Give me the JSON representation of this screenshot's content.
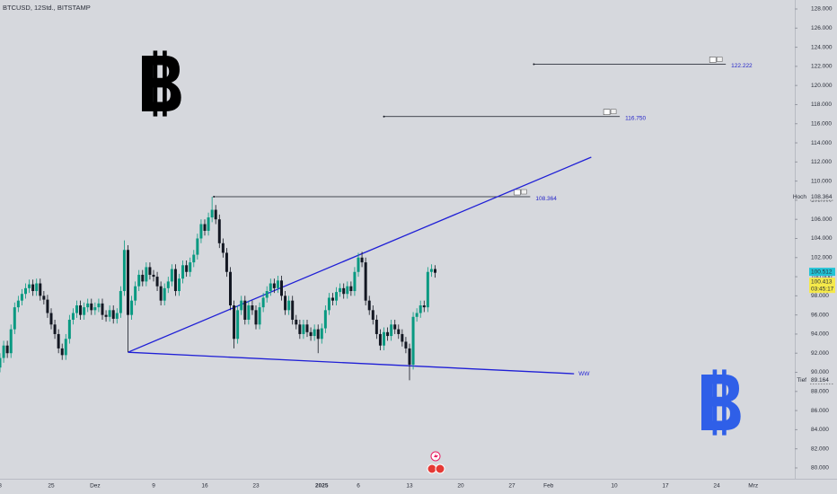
{
  "header": "BTCUSD, 12Std., BITSTAMP",
  "chart_data": {
    "type": "candlestick",
    "categories": [
      "8",
      null,
      null,
      null,
      null,
      null,
      null,
      null,
      null,
      null,
      null,
      null,
      null,
      null,
      "25",
      null,
      null,
      null,
      null,
      null,
      null,
      null,
      null,
      null,
      null,
      null,
      "Dez",
      null,
      null,
      null,
      null,
      null,
      null,
      null,
      null,
      null,
      null,
      null,
      null,
      null,
      null,
      null,
      "9",
      null,
      null,
      null,
      null,
      null,
      null,
      null,
      null,
      null,
      null,
      null,
      null,
      null,
      "16",
      null,
      null,
      null,
      null,
      null,
      null,
      null,
      null,
      null,
      null,
      null,
      null,
      null,
      "23",
      null,
      null,
      null,
      null,
      null,
      null,
      null,
      null,
      null,
      null,
      null,
      null,
      null,
      null,
      null,
      null,
      null,
      "2025",
      null,
      null,
      null,
      null,
      null,
      null,
      null,
      null,
      null,
      "6",
      null,
      null,
      null,
      null,
      null,
      null,
      null,
      null,
      null,
      null,
      null,
      null,
      null,
      "13",
      null,
      null,
      null,
      null,
      null,
      null,
      null,
      null,
      null,
      null,
      null,
      null,
      null,
      "20",
      null,
      null,
      null,
      null,
      null,
      null,
      null,
      null,
      null,
      null,
      null,
      null,
      null,
      "27",
      null,
      null,
      null,
      null,
      null,
      null,
      null,
      null,
      null,
      "Feb",
      null,
      null,
      null,
      null,
      null,
      null,
      null,
      null,
      null,
      null,
      null,
      null,
      null,
      null,
      null,
      null,
      null,
      "10",
      null,
      null,
      null,
      null,
      null,
      null,
      null,
      null,
      null,
      null,
      null,
      null,
      null,
      "17",
      null,
      null,
      null,
      null,
      null,
      null,
      null,
      null,
      null,
      null,
      null,
      null,
      null,
      "24",
      null,
      null,
      null,
      null,
      null,
      null,
      null,
      null,
      null,
      "Mrz",
      null,
      null,
      null,
      null,
      null,
      null,
      null,
      null,
      null,
      null
    ],
    "open": [
      90.5,
      91.5,
      92.8,
      92.0,
      94.5,
      96.8,
      97.5,
      98.2,
      98.8,
      99.2,
      98.5,
      99.3,
      98.0,
      97.6,
      96.2,
      95.0,
      94.0,
      92.5,
      91.8,
      93.5,
      95.5,
      96.2,
      97.0,
      96.0,
      96.8,
      97.2,
      96.5,
      96.8,
      97.2,
      96.0,
      95.8,
      96.5,
      95.6,
      96.2,
      98.5,
      102.8,
      96.0,
      97.5,
      99.0,
      100.2,
      99.5,
      101.0,
      100.2,
      100.0,
      99.0,
      97.5,
      98.8,
      99.5,
      100.8,
      98.5,
      99.8,
      101.2,
      100.5,
      101.5,
      102.3,
      104.0,
      105.5,
      104.8,
      106.2,
      107.0,
      106.0,
      103.5,
      102.5,
      100.5,
      97.0,
      93.5,
      96.5,
      97.5,
      95.5,
      97.0,
      96.5,
      95.0,
      96.8,
      97.8,
      98.5,
      99.3,
      98.8,
      99.6,
      98.0,
      96.5,
      97.5,
      95.5,
      95.0,
      94.0,
      95.0,
      94.2,
      93.8,
      94.5,
      93.5,
      94.6,
      96.5,
      97.8,
      97.5,
      98.4,
      98.8,
      98.2,
      99.0,
      98.5,
      100.5,
      102.0,
      101.5,
      97.5,
      96.5,
      95.5,
      94.0,
      92.8,
      94.2,
      93.8,
      95.0,
      94.5,
      94.0,
      93.2,
      92.5,
      90.8,
      95.8,
      96.2,
      97.0,
      96.8,
      100.5,
      100.8,
      null,
      null,
      null,
      null,
      null,
      null,
      null,
      null,
      null,
      null,
      null,
      null,
      null,
      null,
      null,
      null,
      null,
      null,
      null,
      null,
      null,
      null,
      null,
      null,
      null,
      null,
      null,
      null,
      null,
      null,
      null,
      null,
      null,
      null,
      null,
      null,
      null,
      null,
      null,
      null,
      null,
      null,
      null,
      null,
      null,
      null,
      null,
      null,
      null,
      null,
      null,
      null,
      null,
      null,
      null,
      null,
      null,
      null,
      null,
      null,
      null,
      null,
      null,
      null,
      null,
      null,
      null,
      null,
      null,
      null,
      null,
      null,
      null,
      null,
      null,
      null,
      null,
      null,
      null,
      null,
      null,
      null,
      null,
      null,
      null,
      null,
      null,
      null,
      null,
      null,
      null,
      null,
      null,
      null,
      null,
      null,
      null
    ],
    "high": [
      92.0,
      93.3,
      93.3,
      95.0,
      97.3,
      98.0,
      98.7,
      99.3,
      99.7,
      99.7,
      99.8,
      99.8,
      98.5,
      98.1,
      96.7,
      95.5,
      94.5,
      93.0,
      94.0,
      96.0,
      96.7,
      97.5,
      97.5,
      97.3,
      97.7,
      97.7,
      97.3,
      97.7,
      97.7,
      96.5,
      97.0,
      97.0,
      96.7,
      99.0,
      103.8,
      103.3,
      98.0,
      99.5,
      100.7,
      100.7,
      101.5,
      101.5,
      100.7,
      100.5,
      99.5,
      99.3,
      100.0,
      101.3,
      101.3,
      100.3,
      101.7,
      101.7,
      102.0,
      102.8,
      104.5,
      106.0,
      106.0,
      106.7,
      108.364,
      107.5,
      106.5,
      104.0,
      103.0,
      101.0,
      97.5,
      97.0,
      98.0,
      98.0,
      97.5,
      97.5,
      97.0,
      97.3,
      98.3,
      99.0,
      99.8,
      99.8,
      100.1,
      100.1,
      98.5,
      98.0,
      98.0,
      96.0,
      95.5,
      95.5,
      95.5,
      94.7,
      95.0,
      95.0,
      95.1,
      97.0,
      98.3,
      98.3,
      98.9,
      99.3,
      99.3,
      99.5,
      99.5,
      101.0,
      102.5,
      102.6,
      102.0,
      98.0,
      97.0,
      96.0,
      94.5,
      94.7,
      94.7,
      95.5,
      95.5,
      95.0,
      94.5,
      93.7,
      93.0,
      96.3,
      96.7,
      97.5,
      97.5,
      101.0,
      101.3,
      101.2,
      null,
      null,
      null,
      null,
      null,
      null,
      null,
      null,
      null,
      null,
      null,
      null,
      null,
      null,
      null,
      null,
      null,
      null,
      null,
      null,
      null,
      null,
      null,
      null,
      null,
      null,
      null,
      null,
      null,
      null,
      null,
      null,
      null,
      null,
      null,
      null,
      null,
      null,
      null,
      null,
      null,
      null,
      null,
      null,
      null,
      null,
      null,
      null,
      null,
      null,
      null,
      null,
      null,
      null,
      null,
      null,
      null,
      null,
      null,
      null,
      null,
      null,
      null,
      null,
      null,
      null,
      null,
      null,
      null,
      null,
      null,
      null,
      null,
      null,
      null,
      null,
      null,
      null,
      null,
      null,
      null,
      null,
      null,
      null,
      null,
      null,
      null,
      null,
      null,
      null,
      null,
      null,
      null,
      null,
      null,
      null,
      null
    ],
    "low": [
      90.0,
      91.0,
      91.5,
      91.5,
      94.0,
      96.3,
      97.0,
      97.7,
      98.3,
      98.0,
      98.0,
      97.5,
      97.1,
      95.7,
      94.5,
      93.5,
      92.0,
      91.3,
      91.3,
      93.0,
      95.0,
      95.7,
      95.5,
      95.5,
      96.3,
      96.0,
      96.0,
      96.3,
      95.5,
      95.3,
      95.3,
      95.1,
      95.1,
      95.7,
      98.0,
      92.1,
      95.5,
      97.0,
      98.5,
      99.0,
      99.0,
      99.7,
      99.5,
      98.5,
      97.0,
      97.0,
      98.3,
      99.0,
      98.0,
      98.0,
      99.3,
      100.0,
      100.0,
      101.0,
      101.8,
      103.5,
      104.3,
      104.3,
      105.7,
      105.5,
      103.0,
      102.0,
      100.0,
      96.5,
      92.5,
      93.0,
      96.0,
      95.0,
      95.0,
      96.0,
      94.5,
      94.5,
      96.3,
      97.3,
      98.0,
      98.3,
      98.3,
      97.5,
      96.0,
      96.0,
      95.0,
      94.5,
      93.5,
      93.5,
      93.7,
      93.3,
      93.3,
      92.0,
      93.0,
      94.1,
      96.0,
      97.0,
      97.0,
      97.9,
      97.7,
      97.7,
      98.0,
      98.0,
      100.0,
      101.0,
      97.0,
      96.0,
      95.0,
      93.5,
      92.3,
      92.3,
      93.3,
      93.3,
      94.0,
      93.5,
      92.7,
      92.0,
      89.164,
      90.3,
      95.3,
      95.7,
      96.3,
      96.3,
      100.0,
      99.9,
      null,
      null,
      null,
      null,
      null,
      null,
      null,
      null,
      null,
      null,
      null,
      null,
      null,
      null,
      null,
      null,
      null,
      null,
      null,
      null,
      null,
      null,
      null,
      null,
      null,
      null,
      null,
      null,
      null,
      null,
      null,
      null,
      null,
      null,
      null,
      null,
      null,
      null,
      null,
      null,
      null,
      null,
      null,
      null,
      null,
      null,
      null,
      null,
      null,
      null,
      null,
      null,
      null,
      null,
      null,
      null,
      null,
      null,
      null,
      null,
      null,
      null,
      null,
      null,
      null,
      null,
      null,
      null,
      null,
      null,
      null,
      null,
      null,
      null,
      null,
      null,
      null,
      null,
      null,
      null,
      null,
      null,
      null,
      null,
      null,
      null,
      null,
      null,
      null,
      null,
      null,
      null,
      null,
      null,
      null,
      null,
      null
    ],
    "close": [
      91.5,
      92.8,
      92.0,
      94.5,
      96.8,
      97.5,
      98.2,
      98.8,
      99.2,
      98.5,
      99.3,
      98.0,
      97.6,
      96.2,
      95.0,
      94.0,
      92.5,
      91.8,
      93.5,
      95.5,
      96.2,
      97.0,
      96.0,
      96.8,
      97.2,
      96.5,
      96.8,
      97.2,
      96.0,
      95.8,
      96.5,
      95.6,
      96.2,
      98.5,
      102.8,
      96.0,
      97.5,
      99.0,
      100.2,
      99.5,
      101.0,
      100.2,
      100.0,
      99.0,
      97.5,
      98.8,
      99.5,
      100.8,
      98.5,
      99.8,
      101.2,
      100.5,
      101.5,
      102.3,
      104.0,
      105.5,
      104.8,
      106.2,
      107.0,
      106.0,
      103.5,
      102.5,
      100.5,
      97.0,
      93.5,
      96.5,
      97.5,
      95.5,
      97.0,
      96.5,
      95.0,
      96.8,
      97.8,
      98.5,
      99.3,
      98.8,
      99.6,
      98.0,
      96.5,
      97.5,
      95.5,
      95.0,
      94.0,
      95.0,
      94.2,
      93.8,
      94.5,
      93.5,
      94.6,
      96.5,
      97.8,
      97.5,
      98.4,
      98.8,
      98.2,
      99.0,
      98.5,
      100.5,
      102.0,
      101.5,
      97.5,
      96.5,
      95.5,
      94.0,
      92.8,
      94.2,
      93.8,
      95.0,
      94.5,
      94.0,
      93.2,
      92.5,
      90.8,
      95.8,
      96.2,
      97.0,
      96.8,
      100.5,
      100.8,
      100.413,
      null,
      null,
      null,
      null,
      null,
      null,
      null,
      null,
      null,
      null,
      null,
      null,
      null,
      null,
      null,
      null,
      null,
      null,
      null,
      null,
      null,
      null,
      null,
      null,
      null,
      null,
      null,
      null,
      null,
      null,
      null,
      null,
      null,
      null,
      null,
      null,
      null,
      null,
      null,
      null,
      null,
      null,
      null,
      null,
      null,
      null,
      null,
      null,
      null,
      null,
      null,
      null,
      null,
      null,
      null,
      null,
      null,
      null,
      null,
      null,
      null,
      null,
      null,
      null,
      null,
      null,
      null,
      null,
      null,
      null,
      null,
      null,
      null,
      null,
      null,
      null,
      null,
      null,
      null,
      null,
      null,
      null,
      null,
      null,
      null,
      null,
      null,
      null,
      null,
      null,
      null,
      null,
      null,
      null,
      null,
      null,
      null
    ],
    "up_color": "#089981",
    "down_color": "#131722",
    "ylim": [
      78.87,
      128.94
    ],
    "yticks": [
      {
        "value": 80,
        "label": "80.000"
      },
      {
        "value": 82,
        "label": "82.000"
      },
      {
        "value": 84,
        "label": "84.000"
      },
      {
        "value": 86,
        "label": "86.000"
      },
      {
        "value": 88,
        "label": "88.000"
      },
      {
        "value": 90,
        "label": "90.000"
      },
      {
        "value": 92,
        "label": "92.000"
      },
      {
        "value": 94,
        "label": "94.000"
      },
      {
        "value": 96,
        "label": "96.000"
      },
      {
        "value": 98,
        "label": "98.000"
      },
      {
        "value": 100,
        "label": "100.000"
      },
      {
        "value": 102,
        "label": "102.000"
      },
      {
        "value": 104,
        "label": "104.000"
      },
      {
        "value": 106,
        "label": "106.000"
      },
      {
        "value": 108,
        "label": "108.000"
      },
      {
        "value": 110,
        "label": "110.000"
      },
      {
        "value": 112,
        "label": "112.000"
      },
      {
        "value": 114,
        "label": "114.000"
      },
      {
        "value": 116,
        "label": "116.000"
      },
      {
        "value": 118,
        "label": "118.000"
      },
      {
        "value": 120,
        "label": "120.000"
      },
      {
        "value": 122,
        "label": "122.000"
      },
      {
        "value": 124,
        "label": "124.000"
      },
      {
        "value": 126,
        "label": "126.000"
      },
      {
        "value": 128,
        "label": "128.000"
      }
    ],
    "levels": [
      {
        "value": 108.364,
        "label": "108.364"
      },
      {
        "value": 116.75,
        "label": "116.750"
      },
      {
        "value": 122.222,
        "label": "122.222"
      }
    ],
    "level_color": "#131722",
    "level_label_color": "#2424c8",
    "trendlines": [
      {
        "values": [
          92.1,
          112.5
        ],
        "color": "#1f1fd6"
      },
      {
        "values": [
          92.1,
          89.85
        ],
        "color": "#1f1fd6",
        "label": "WW"
      }
    ],
    "axis_markers": [
      {
        "name": "Hoch",
        "value": 108.364,
        "label": "108.364"
      },
      {
        "name": "Tief",
        "value": 89.164,
        "label": "89.164"
      },
      {
        "value": 100.512,
        "label": "100.512",
        "color": "#22c3d6"
      },
      {
        "value": 100.413,
        "label": "100.413",
        "countdown": "03:45:17",
        "color": "#f5e94a"
      }
    ]
  }
}
